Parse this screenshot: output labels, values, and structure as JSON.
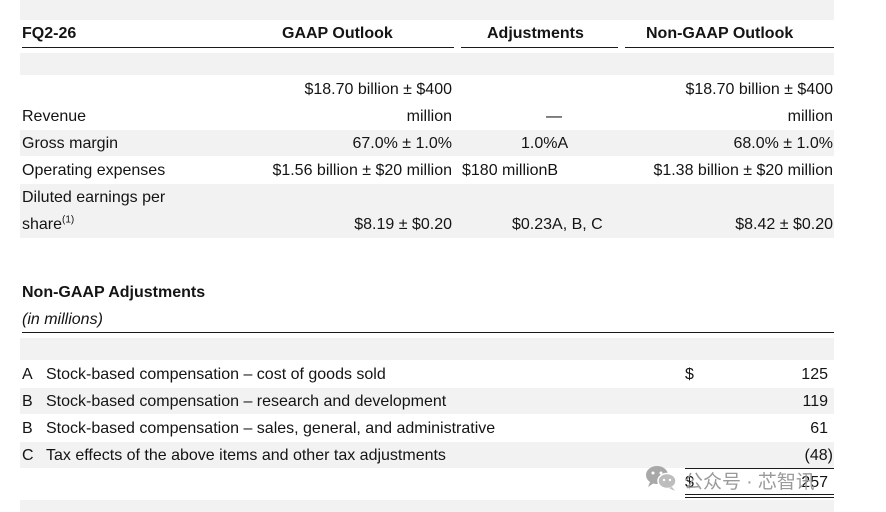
{
  "outlook": {
    "header": {
      "period": "FQ2-26",
      "gaap": "GAAP Outlook",
      "adjustments": "Adjustments",
      "non_gaap": "Non-GAAP Outlook"
    },
    "rows": [
      {
        "label": "Revenue",
        "gaap_line1": "$18.70 billion ± $400",
        "gaap_line2": "million",
        "adjustment": "—",
        "non_gaap_line1": "$18.70 billion ± $400",
        "non_gaap_line2": "million"
      },
      {
        "label": "Gross margin",
        "gaap": "67.0% ± 1.0%",
        "adjustment": "1.0%A",
        "non_gaap": "68.0% ± 1.0%"
      },
      {
        "label": "Operating expenses",
        "gaap": "$1.56 billion ± $20 million",
        "adjustment": "$180 millionB",
        "non_gaap": "$1.38 billion ± $20 million"
      },
      {
        "label_line1": "Diluted earnings per",
        "label_line2": "share",
        "footnote": "(1)",
        "gaap": "$8.19 ± $0.20",
        "adjustment": "$0.23A, B, C",
        "non_gaap": "$8.42 ± $0.20"
      }
    ]
  },
  "adjustments_table": {
    "title": "Non-GAAP Adjustments",
    "subtitle": "(in millions)",
    "currency_symbol": "$",
    "items": [
      {
        "code": "A",
        "description": "Stock-based compensation – cost of goods sold",
        "value": "125"
      },
      {
        "code": "B",
        "description": "Stock-based compensation – research and development",
        "value": "119"
      },
      {
        "code": "B",
        "description": "Stock-based compensation – sales, general, and administrative",
        "value": "61"
      },
      {
        "code": "C",
        "description": "Tax effects of the above items and other tax adjustments",
        "value": "(48)"
      }
    ],
    "total": "257"
  },
  "watermark": {
    "text": "公众号 · 芯智讯",
    "icon": "wechat-icon",
    "color": "#9a9a9a"
  }
}
